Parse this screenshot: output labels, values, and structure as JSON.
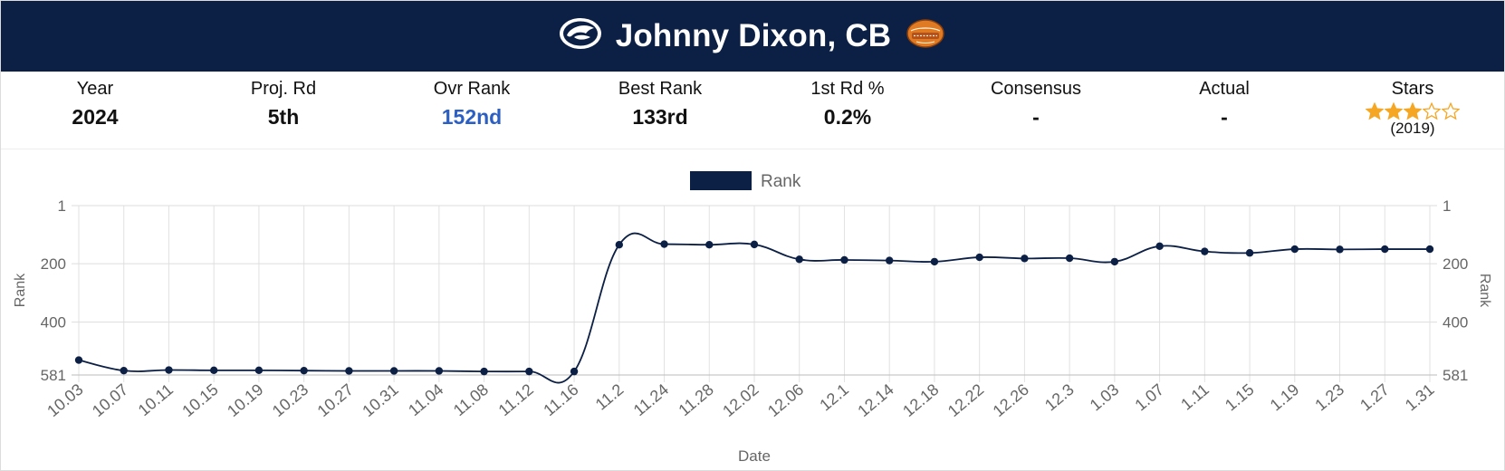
{
  "header": {
    "title": "Johnny Dixon, CB",
    "team_logo": "penn-state-nittany-lion-logo",
    "bowl_logo": "senior-bowl-logo"
  },
  "stats": [
    {
      "label": "Year",
      "value": "2024"
    },
    {
      "label": "Proj. Rd",
      "value": "5th"
    },
    {
      "label": "Ovr Rank",
      "value": "152nd",
      "color": "#2c5fc4"
    },
    {
      "label": "Best Rank",
      "value": "133rd"
    },
    {
      "label": "1st Rd %",
      "value": "0.2%"
    },
    {
      "label": "Consensus",
      "value": "-"
    },
    {
      "label": "Actual",
      "value": "-"
    },
    {
      "label": "Stars",
      "stars": 3,
      "max_stars": 5,
      "year": "(2019)"
    }
  ],
  "colors": {
    "navy": "#0c1f44",
    "star": "#f5a623",
    "blue": "#2c5fc4"
  },
  "chart_data": {
    "type": "line",
    "title": "",
    "legend": {
      "label": "Rank",
      "position": "top-center"
    },
    "xlabel": "Date",
    "ylabel": "Rank",
    "y_reversed": true,
    "ylim": [
      1,
      581
    ],
    "y_ticks": [
      "1",
      "200",
      "400",
      "581"
    ],
    "grid": true,
    "x": [
      "10.03",
      "10.07",
      "10.11",
      "10.15",
      "10.19",
      "10.23",
      "10.27",
      "10.31",
      "11.04",
      "11.08",
      "11.12",
      "11.16",
      "11.2",
      "11.24",
      "11.28",
      "12.02",
      "12.06",
      "12.1",
      "12.14",
      "12.18",
      "12.22",
      "12.26",
      "12.3",
      "1.03",
      "1.07",
      "1.11",
      "1.15",
      "1.19",
      "1.23",
      "1.27",
      "1.31"
    ],
    "series": [
      {
        "name": "Rank",
        "values": [
          530,
          566,
          564,
          565,
          565,
          566,
          567,
          567,
          567,
          569,
          569,
          569,
          135,
          133,
          135,
          134,
          185,
          187,
          189,
          193,
          178,
          182,
          181,
          193,
          140,
          158,
          163,
          150,
          151,
          150,
          150
        ]
      }
    ]
  }
}
